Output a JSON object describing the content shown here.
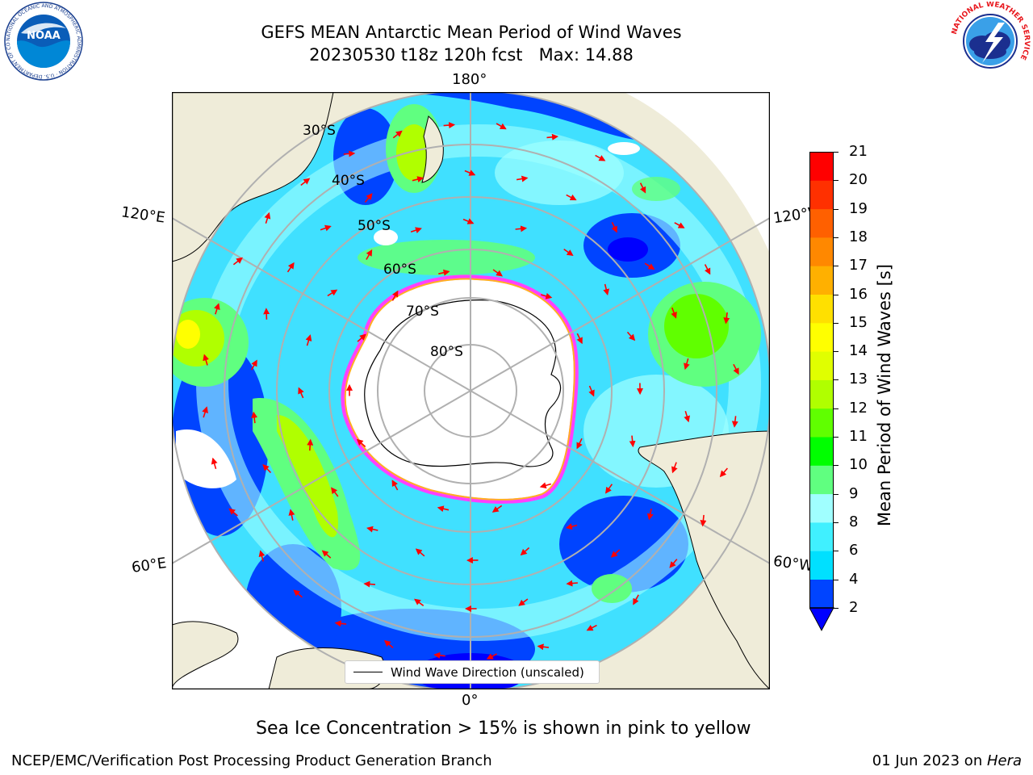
{
  "title": {
    "line1": "GEFS MEAN Antarctic Mean Period of Wind Waves",
    "line2": "20230530 t18z 120h fcst   Max: 14.88"
  },
  "logos": {
    "noaa_text": "NOAA",
    "noaa_ring_text": "NATIONAL OCEANIC AND ATMOSPHERIC ADMINISTRATION · U.S. DEPARTMENT OF COMMERCE",
    "nws_ring_text": "NATIONAL WEATHER SERVICE"
  },
  "map": {
    "projection": "south-polar-stereographic",
    "longitude_labels": {
      "top": "180°",
      "upper_left": "120°E",
      "upper_right": "120°W",
      "lower_left": "60°E",
      "lower_right": "60°W",
      "bottom": "0°"
    },
    "latitude_labels": [
      "30°S",
      "40°S",
      "50°S",
      "60°S",
      "70°S",
      "80°S"
    ],
    "colors": {
      "land": "#efecd9",
      "ice": "#ffffff",
      "ice_edge": "#ff40ff",
      "ice_edge_inner": "#ffb020",
      "arrows": "#ff0000",
      "grid": "#b0b0b0"
    },
    "legend_label": "Wind Wave Direction (unscaled)"
  },
  "colorbar": {
    "title": "Mean Period of Wind Waves [s]",
    "ticks": [
      "2",
      "4",
      "6",
      "8",
      "9",
      "10",
      "11",
      "12",
      "13",
      "14",
      "15",
      "16",
      "17",
      "18",
      "19",
      "20",
      "21"
    ],
    "colors": [
      "#0044ff",
      "#00e0ff",
      "#40f0ff",
      "#a0ffff",
      "#60ff80",
      "#00ff00",
      "#60ff00",
      "#b0ff00",
      "#e0ff00",
      "#ffff00",
      "#ffe000",
      "#ffb000",
      "#ff8800",
      "#ff6000",
      "#ff3000",
      "#ff0000"
    ],
    "extend_color": "#0000ff"
  },
  "footer": {
    "note": "Sea Ice Concentration > 15% is shown in pink to yellow",
    "credit": "NCEP/EMC/Verification Post Processing Product Generation Branch",
    "date_prefix": "01 Jun 2023 on ",
    "date_host": "Hera"
  }
}
